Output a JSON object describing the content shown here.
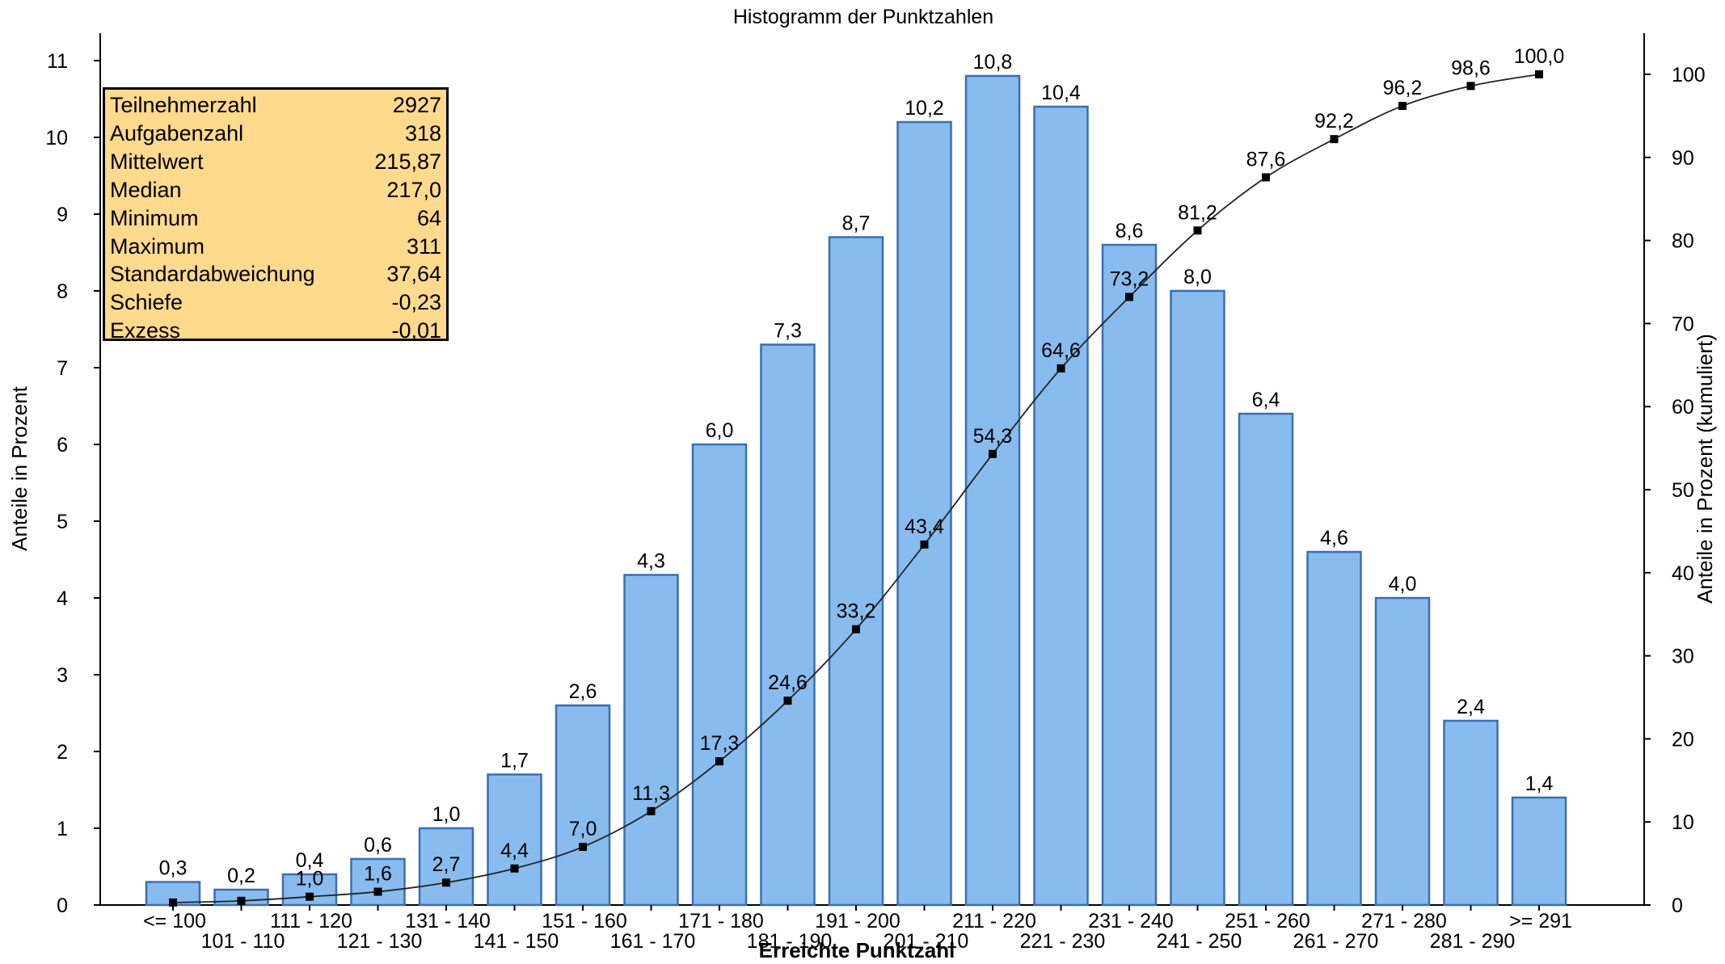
{
  "stats": [
    {
      "label": "Teilnehmerzahl",
      "value": "2927"
    },
    {
      "label": "Aufgabenzahl",
      "value": "318"
    },
    {
      "label": "Mittelwert",
      "value": "215,87"
    },
    {
      "label": "Median",
      "value": "217,0"
    },
    {
      "label": "Minimum",
      "value": "64"
    },
    {
      "label": "Maximum",
      "value": "311"
    },
    {
      "label": "Standardabweichung",
      "value": "37,64"
    },
    {
      "label": "Schiefe",
      "value": "-0,23"
    },
    {
      "label": "Exzess",
      "value": "-0,01"
    }
  ],
  "chart_data": {
    "type": "bar",
    "title": "Histogramm der Punktzahlen",
    "xlabel": "Erreichte Punktzahl",
    "ylabel": "Anteile in Prozent",
    "y2label": "Anteile in Prozent (kumuliert)",
    "ylim": [
      0,
      11
    ],
    "y2lim": [
      0,
      100
    ],
    "yticks": [
      "0",
      "1",
      "2",
      "3",
      "4",
      "5",
      "6",
      "7",
      "8",
      "9",
      "10",
      "11"
    ],
    "y2ticks": [
      "0",
      "10",
      "20",
      "30",
      "40",
      "50",
      "60",
      "70",
      "80",
      "90",
      "100"
    ],
    "grid": false,
    "bar_color": "#88bbee",
    "bar_edge_color": "#3a6fb0",
    "categories": [
      "<= 100",
      "101 - 110",
      "111 - 120",
      "121 - 130",
      "131 - 140",
      "141 - 150",
      "151 - 160",
      "161 - 170",
      "171 - 180",
      "181 - 190",
      "191 - 200",
      "201 - 210",
      "211 - 220",
      "221 - 230",
      "231 - 240",
      "241 - 250",
      "251 - 260",
      "261 - 270",
      "271 - 280",
      "281 - 290",
      ">= 291"
    ],
    "values": [
      0.3,
      0.2,
      0.4,
      0.6,
      1.0,
      1.7,
      2.6,
      4.3,
      6.0,
      7.3,
      8.7,
      10.2,
      10.8,
      10.4,
      8.6,
      8.0,
      6.4,
      4.6,
      4.0,
      2.4,
      1.4
    ],
    "value_labels": [
      "0,3",
      "0,2",
      "0,4",
      "0,6",
      "1,0",
      "1,7",
      "2,6",
      "4,3",
      "6,0",
      "7,3",
      "8,7",
      "10,2",
      "10,8",
      "10,4",
      "8,6",
      "8,0",
      "6,4",
      "4,6",
      "4,0",
      "2,4",
      "1,4"
    ],
    "cumulative": [
      0.3,
      0.5,
      1.0,
      1.6,
      2.7,
      4.4,
      7.0,
      11.3,
      17.3,
      24.6,
      33.2,
      43.4,
      54.3,
      64.6,
      73.2,
      81.2,
      87.6,
      92.2,
      96.2,
      98.6,
      100.0
    ],
    "cumulative_labels": [
      "",
      "",
      "1,0",
      "1,6",
      "2,7",
      "4,4",
      "7,0",
      "11,3",
      "17,3",
      "24,6",
      "33,2",
      "43,4",
      "54,3",
      "64,6",
      "73,2",
      "81,2",
      "87,6",
      "92,2",
      "96,2",
      "98,6",
      "100,0"
    ]
  }
}
